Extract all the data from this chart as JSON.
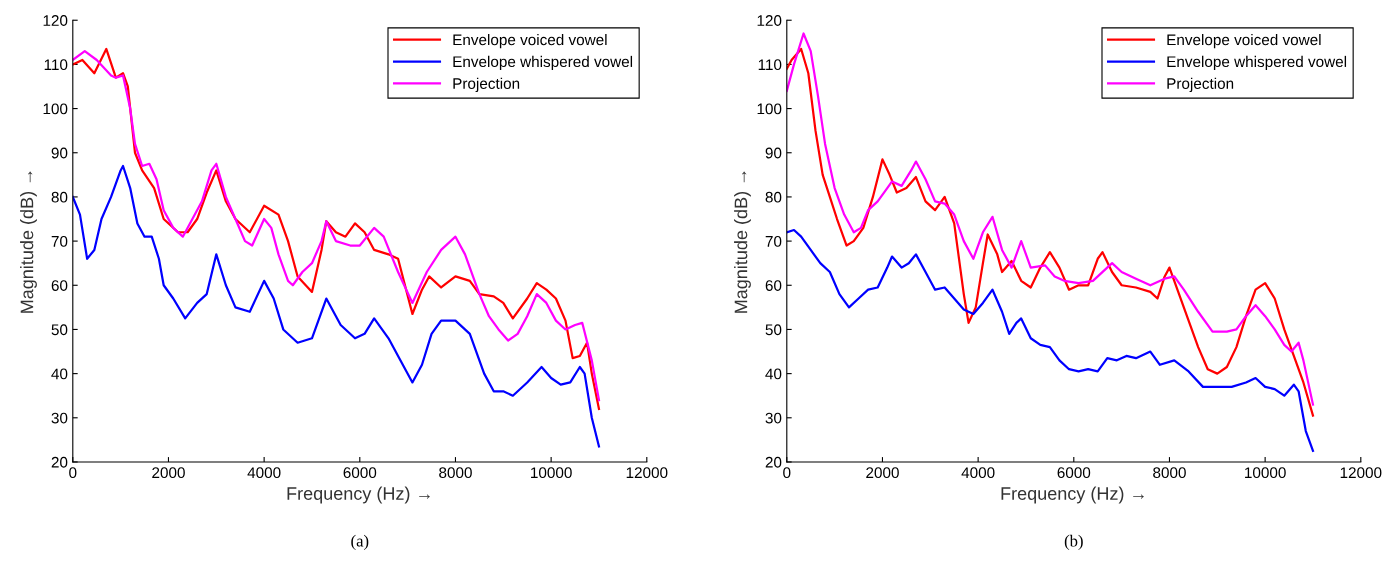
{
  "chart_data": [
    {
      "type": "line",
      "xlabel": "Frequency (Hz) →",
      "ylabel": "Magnitude (dB) →",
      "annotations": [
        "(a)"
      ],
      "xlim": [
        0,
        12000
      ],
      "ylim": [
        20,
        120
      ],
      "xticks": [
        0,
        2000,
        4000,
        6000,
        8000,
        10000,
        12000
      ],
      "yticks": [
        20,
        30,
        40,
        50,
        60,
        70,
        80,
        90,
        100,
        110,
        120
      ],
      "legend": "top right",
      "grid": false,
      "series": [
        {
          "name": "Envelope voiced vowel",
          "color": "#ff0000",
          "x": [
            0,
            200,
            450,
            700,
            900,
            1050,
            1150,
            1300,
            1450,
            1700,
            1900,
            2200,
            2400,
            2600,
            2800,
            3000,
            3200,
            3400,
            3700,
            4000,
            4300,
            4500,
            4700,
            5000,
            5200,
            5300,
            5500,
            5700,
            5900,
            6100,
            6300,
            6600,
            6800,
            7100,
            7300,
            7450,
            7700,
            8000,
            8300,
            8500,
            8800,
            9000,
            9200,
            9500,
            9700,
            9900,
            10100,
            10300,
            10450,
            10600,
            10750,
            10850,
            11000
          ],
          "values": [
            110,
            111,
            108,
            113.5,
            107,
            108,
            105,
            90,
            86,
            82,
            75,
            72,
            72,
            75,
            81,
            86,
            79,
            75,
            72,
            78,
            76,
            70,
            62,
            58.5,
            68,
            74.5,
            72,
            71,
            74,
            72,
            68,
            67,
            66,
            53.5,
            59,
            62,
            59.5,
            62,
            61,
            58,
            57.5,
            56,
            52.5,
            57,
            60.5,
            59,
            57,
            52,
            43.5,
            44,
            47,
            40,
            32
          ]
        },
        {
          "name": "Envelope whispered vowel",
          "color": "#0000ff",
          "x": [
            0,
            150,
            300,
            450,
            600,
            800,
            1000,
            1050,
            1200,
            1350,
            1500,
            1650,
            1800,
            1900,
            2100,
            2350,
            2600,
            2800,
            3000,
            3200,
            3400,
            3700,
            4000,
            4200,
            4400,
            4700,
            5000,
            5300,
            5600,
            5900,
            6100,
            6300,
            6600,
            6800,
            7100,
            7300,
            7500,
            7700,
            8000,
            8300,
            8600,
            8800,
            9000,
            9200,
            9500,
            9800,
            10000,
            10200,
            10400,
            10600,
            10700,
            10850,
            11000
          ],
          "values": [
            80,
            76,
            66,
            68,
            75,
            80,
            86,
            87,
            82,
            74,
            71,
            71,
            66,
            60,
            57,
            52.5,
            56,
            58,
            67,
            60,
            55,
            54,
            61,
            57,
            50,
            47,
            48,
            57,
            51,
            48,
            49,
            52.5,
            48,
            44,
            38,
            42,
            49,
            52,
            52,
            49,
            40,
            36,
            36,
            35,
            38,
            41.5,
            39,
            37.5,
            38,
            41.5,
            40,
            30,
            23.5
          ]
        },
        {
          "name": "Projection",
          "color": "#ff00ff",
          "x": [
            0,
            250,
            500,
            800,
            900,
            1050,
            1200,
            1300,
            1450,
            1600,
            1750,
            1900,
            2100,
            2300,
            2500,
            2700,
            2900,
            3000,
            3200,
            3400,
            3600,
            3750,
            4000,
            4150,
            4300,
            4500,
            4600,
            4800,
            5000,
            5200,
            5300,
            5500,
            5800,
            6000,
            6300,
            6500,
            6800,
            7100,
            7400,
            7700,
            8000,
            8200,
            8500,
            8700,
            8900,
            9100,
            9300,
            9500,
            9700,
            9900,
            10100,
            10300,
            10500,
            10650,
            10850,
            11000
          ],
          "values": [
            111,
            113,
            111,
            107.5,
            107,
            107.5,
            100,
            92,
            87,
            87.5,
            84,
            77,
            73,
            71,
            75,
            79,
            86,
            87.5,
            80,
            75,
            70,
            69,
            75,
            73,
            67,
            61,
            60,
            63,
            65,
            70,
            74.5,
            70,
            69,
            69,
            73,
            71,
            63,
            56,
            63,
            68,
            71,
            67,
            58,
            53,
            50,
            47.5,
            49,
            53,
            58,
            56,
            52,
            50,
            51,
            51.5,
            43,
            34
          ]
        }
      ]
    },
    {
      "type": "line",
      "xlabel": "Frequency (Hz) →",
      "ylabel": "Magnitude (dB) →",
      "annotations": [
        "(b)"
      ],
      "xlim": [
        0,
        12000
      ],
      "ylim": [
        20,
        120
      ],
      "xticks": [
        0,
        2000,
        4000,
        6000,
        8000,
        10000,
        12000
      ],
      "yticks": [
        20,
        30,
        40,
        50,
        60,
        70,
        80,
        90,
        100,
        110,
        120
      ],
      "legend": "top right",
      "grid": false,
      "series": [
        {
          "name": "Envelope voiced vowel",
          "color": "#ff0000",
          "x": [
            0,
            100,
            300,
            450,
            600,
            750,
            900,
            1050,
            1250,
            1400,
            1600,
            1800,
            2000,
            2150,
            2300,
            2500,
            2700,
            2900,
            3100,
            3300,
            3500,
            3700,
            3800,
            3950,
            4100,
            4200,
            4400,
            4500,
            4700,
            4900,
            5100,
            5300,
            5500,
            5700,
            5900,
            6100,
            6300,
            6500,
            6600,
            6800,
            7000,
            7300,
            7600,
            7750,
            7900,
            8000,
            8200,
            8400,
            8600,
            8800,
            9000,
            9200,
            9400,
            9600,
            9800,
            10000,
            10200,
            10400,
            10600,
            10800,
            11000
          ],
          "values": [
            109,
            111,
            113.5,
            108,
            95,
            85,
            80,
            75,
            69,
            70,
            73,
            80,
            88.5,
            85,
            81,
            82,
            84.5,
            79,
            77,
            80,
            74,
            58,
            51.5,
            55,
            65,
            71.5,
            67,
            63,
            65.5,
            61,
            59.5,
            64,
            67.5,
            64,
            59,
            60,
            60,
            66,
            67.5,
            63,
            60,
            59.5,
            58.5,
            57,
            62,
            64,
            58,
            52,
            46,
            41,
            40,
            41.5,
            46,
            53,
            59,
            60.5,
            57,
            50,
            44,
            38,
            30.5
          ]
        },
        {
          "name": "Envelope whispered vowel",
          "color": "#0000ff",
          "x": [
            0,
            150,
            300,
            500,
            700,
            900,
            1100,
            1300,
            1500,
            1700,
            1900,
            2100,
            2200,
            2400,
            2550,
            2700,
            2900,
            3100,
            3300,
            3500,
            3700,
            3900,
            4100,
            4300,
            4500,
            4650,
            4800,
            4900,
            5100,
            5300,
            5500,
            5700,
            5900,
            6100,
            6300,
            6500,
            6700,
            6900,
            7100,
            7300,
            7500,
            7600,
            7800,
            8100,
            8400,
            8700,
            9000,
            9300,
            9600,
            9800,
            10000,
            10200,
            10400,
            10600,
            10700,
            10850,
            11000
          ],
          "values": [
            72,
            72.5,
            71,
            68,
            65,
            63,
            58,
            55,
            57,
            59,
            59.5,
            64,
            66.5,
            64,
            65,
            67,
            63,
            59,
            59.5,
            57,
            54.5,
            53.5,
            56,
            59,
            54,
            49,
            51.5,
            52.5,
            48,
            46.5,
            46,
            43,
            41,
            40.5,
            41,
            40.5,
            43.5,
            43,
            44,
            43.5,
            44.5,
            45,
            42,
            43,
            40.5,
            37,
            37,
            37,
            38,
            39,
            37,
            36.5,
            35,
            37.5,
            36,
            27,
            22.5
          ]
        },
        {
          "name": "Projection",
          "color": "#ff00ff",
          "x": [
            0,
            150,
            350,
            500,
            650,
            800,
            1000,
            1200,
            1400,
            1550,
            1700,
            1900,
            2100,
            2200,
            2400,
            2600,
            2700,
            2900,
            3100,
            3300,
            3500,
            3700,
            3900,
            4100,
            4300,
            4500,
            4700,
            4900,
            5100,
            5400,
            5600,
            5800,
            6100,
            6400,
            6800,
            7000,
            7300,
            7600,
            7900,
            8100,
            8300,
            8600,
            8900,
            9200,
            9400,
            9600,
            9800,
            10000,
            10200,
            10400,
            10550,
            10700,
            10800,
            11000
          ],
          "values": [
            104,
            110,
            117,
            113,
            103,
            92,
            82,
            76,
            72,
            73,
            77,
            79,
            82,
            83.5,
            82.5,
            86,
            88,
            84,
            79,
            78.5,
            76,
            70,
            66,
            72,
            75.5,
            68,
            64,
            70,
            64,
            64.5,
            62,
            61,
            60.5,
            61,
            65,
            63,
            61.5,
            60,
            61.5,
            62,
            59,
            54,
            49.5,
            49.5,
            50,
            53,
            55.5,
            53,
            50,
            46.5,
            45,
            47,
            43,
            33
          ]
        }
      ]
    }
  ]
}
